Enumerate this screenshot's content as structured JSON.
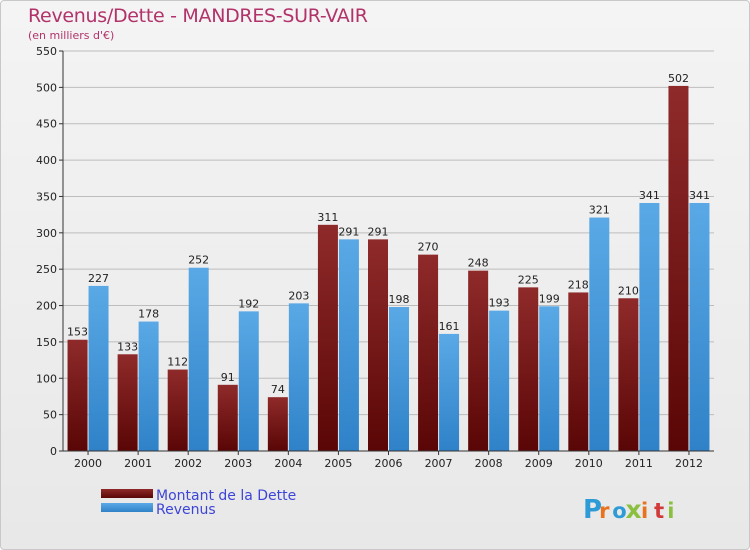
{
  "header": {
    "title": "Revenus/Dette - MANDRES-SUR-VAIR",
    "subtitle": "(en milliers d'€)"
  },
  "logo": {
    "text": "Proxiti",
    "colors": [
      "#2e9bd6",
      "#e8731e",
      "#2e9bd6",
      "#8bbf3f",
      "#e8731e",
      "#d23a3a",
      "#8bbf3f"
    ]
  },
  "colors": {
    "debt": "#7a1212",
    "debt_light": "#8f2a2a",
    "revenue": "#5aa9e6",
    "revenue_dark": "#2f82c8",
    "title": "#b2326a",
    "legend_text": "#3d45d6"
  },
  "chart_data": {
    "type": "bar",
    "title": "Revenus/Dette - MANDRES-SUR-VAIR",
    "ylabel": "(en milliers d'€)",
    "xlabel": "",
    "categories": [
      "2000",
      "2001",
      "2002",
      "2003",
      "2004",
      "2005",
      "2006",
      "2007",
      "2008",
      "2009",
      "2010",
      "2011",
      "2012"
    ],
    "series": [
      {
        "name": "Montant de la Dette",
        "values": [
          153,
          133,
          112,
          91,
          74,
          311,
          291,
          270,
          248,
          225,
          218,
          210,
          502
        ]
      },
      {
        "name": "Revenus",
        "values": [
          227,
          178,
          252,
          192,
          203,
          291,
          198,
          161,
          193,
          199,
          321,
          341,
          341
        ]
      }
    ],
    "ylim": [
      0,
      550
    ],
    "yticks": [
      0,
      50,
      100,
      150,
      200,
      250,
      300,
      350,
      400,
      450,
      500,
      550
    ],
    "grid": true,
    "legend_position": "bottom-left"
  }
}
